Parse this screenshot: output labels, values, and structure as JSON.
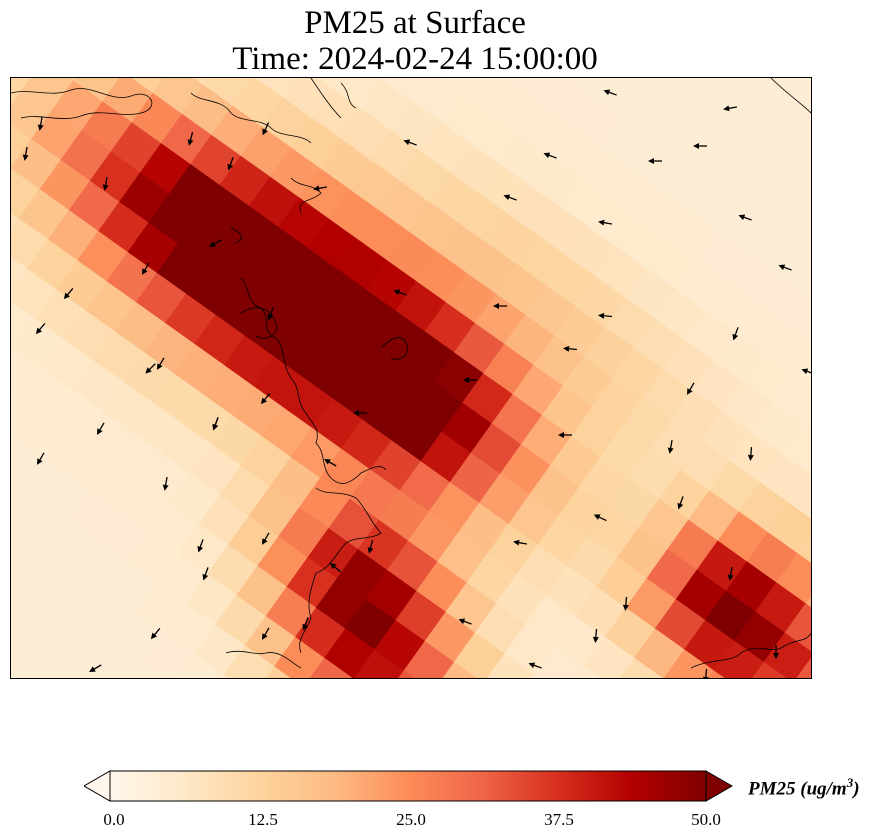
{
  "title": {
    "line1": "PM25 at Surface",
    "line2": "Time: 2024-02-24 15:00:00"
  },
  "colorbar": {
    "label_prefix": "PM25 (ug/m",
    "label_exp": "3",
    "label_suffix": ")",
    "min": 0.0,
    "max": 50.0,
    "extend": "both",
    "ticks": [
      "0.0",
      "12.5",
      "25.0",
      "37.5",
      "50.0"
    ],
    "colormap": "OrRd",
    "colors": [
      "#fff7ec",
      "#fee8c8",
      "#fdd49e",
      "#fdbb84",
      "#fc8d59",
      "#ef6548",
      "#d7301f",
      "#b30000",
      "#7f0000"
    ]
  },
  "map": {
    "variable": "PM25",
    "features": [
      "coastline",
      "wind-vectors",
      "concentration-field"
    ]
  }
}
